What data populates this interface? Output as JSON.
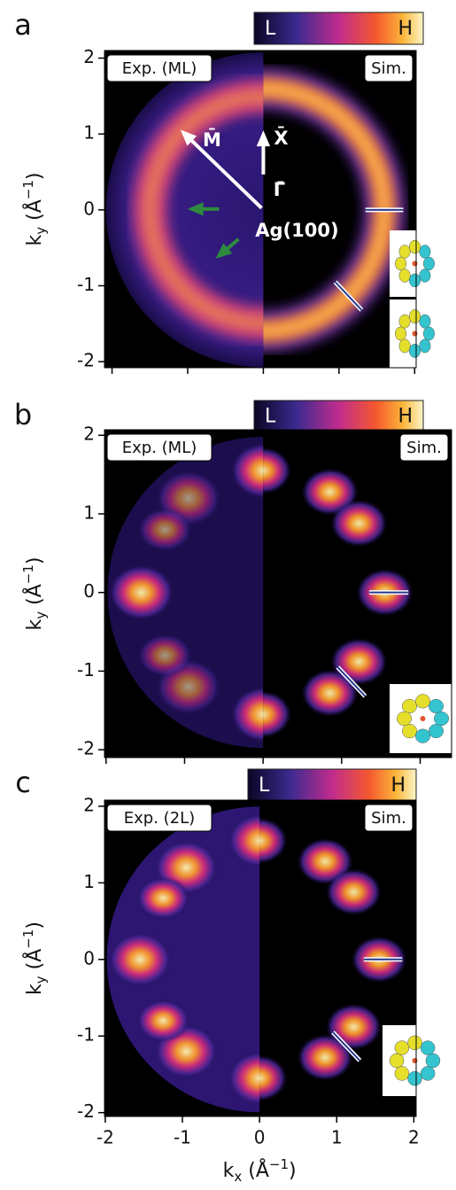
{
  "chart_data": [
    {
      "type": "map",
      "panel": "a",
      "left_label": "Exp. (ML)",
      "right_label": "Sim.",
      "colorbar": [
        "L",
        "H"
      ],
      "ylabel": [
        "k",
        "y",
        " (Å",
        "−1",
        ")"
      ],
      "xlim": [
        -2.1,
        2.02
      ],
      "ylim": [
        -2.08,
        2.1
      ],
      "yticks": [
        -2,
        -1,
        0,
        1,
        2
      ],
      "annotations": [
        "M̄",
        "X̄",
        "Γ̄",
        "Ag(100)"
      ],
      "style": "ring"
    },
    {
      "type": "map",
      "panel": "b",
      "left_label": "Exp. (ML)",
      "right_label": "Sim.",
      "colorbar": [
        "L",
        "H"
      ],
      "ylabel": [
        "k",
        "y",
        " (Å",
        "−1",
        ")"
      ],
      "xlim": [
        -2.02,
        2.4
      ],
      "ylim": [
        -2.1,
        2.07
      ],
      "yticks": [
        -2,
        -1,
        0,
        1,
        2
      ],
      "style": "faint"
    },
    {
      "type": "map",
      "panel": "c",
      "left_label": "Exp. (2L)",
      "right_label": "Sim.",
      "colorbar": [
        "L",
        "H"
      ],
      "ylabel": [
        "k",
        "y",
        " (Å",
        "−1",
        ")"
      ],
      "xlabel": [
        "k",
        "x",
        " (Å",
        "−1",
        ")"
      ],
      "xlim": [
        -2.01,
        2.03
      ],
      "ylim": [
        -2.05,
        2.08
      ],
      "xticks": [
        -2,
        -1,
        0,
        1,
        2
      ],
      "yticks": [
        -2,
        -1,
        0,
        1,
        2
      ],
      "style": "bright"
    }
  ]
}
